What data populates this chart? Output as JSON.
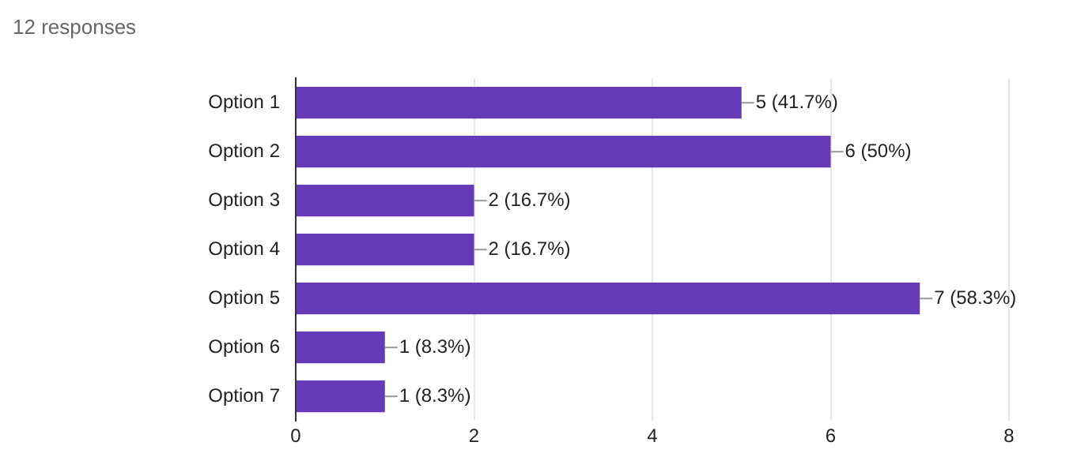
{
  "chart_data": {
    "type": "bar",
    "orientation": "horizontal",
    "title": "12 responses",
    "categories": [
      "Option 1",
      "Option 2",
      "Option 3",
      "Option 4",
      "Option 5",
      "Option 6",
      "Option 7"
    ],
    "values": [
      5,
      6,
      2,
      2,
      7,
      1,
      1
    ],
    "value_labels": [
      "5 (41.7%)",
      "6 (50%)",
      "2 (16.7%)",
      "2 (16.7%)",
      "7 (58.3%)",
      "1 (8.3%)",
      "1 (8.3%)"
    ],
    "color": "#673ab7",
    "xlim": [
      0,
      8
    ],
    "xticks": [
      0,
      2,
      4,
      6,
      8
    ],
    "grid": "x",
    "legend": false
  }
}
